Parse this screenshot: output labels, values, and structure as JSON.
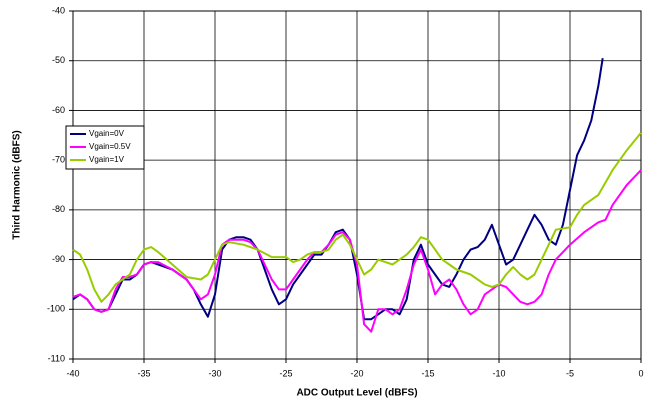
{
  "chart_data": {
    "type": "line",
    "x_label": "ADC Output Level (dBFS)",
    "y_label": "Third Harmonic (dBFS)",
    "xlim": [
      -40,
      0
    ],
    "xticks": [
      -40,
      -35,
      -30,
      -25,
      -20,
      -15,
      -10,
      -5,
      0
    ],
    "ylim": [
      -110,
      -40
    ],
    "yticks": [
      -110,
      -100,
      -90,
      -80,
      -70,
      -60,
      -50,
      -40
    ],
    "grid": true,
    "legend": "upper left",
    "series": [
      {
        "name": "Vgain=0V",
        "color": "#000080",
        "x": [
          -40,
          -39.5,
          -39,
          -38.5,
          -38,
          -37.5,
          -37,
          -36.5,
          -36,
          -35.5,
          -35,
          -34.5,
          -34,
          -33,
          -32,
          -31.5,
          -31,
          -30.5,
          -30,
          -29.5,
          -29,
          -28.5,
          -28,
          -27.5,
          -27,
          -26.5,
          -26,
          -25.5,
          -25,
          -24.5,
          -24,
          -23.5,
          -23,
          -22.5,
          -22,
          -21.5,
          -21,
          -20.5,
          -20,
          -19.5,
          -19,
          -18.5,
          -18,
          -17.5,
          -17,
          -16.5,
          -16,
          -15.5,
          -15,
          -14.5,
          -14,
          -13.5,
          -13,
          -12.5,
          -12,
          -11.5,
          -11,
          -10.5,
          -10,
          -9.5,
          -9,
          -8.5,
          -8,
          -7.5,
          -7,
          -6.5,
          -6,
          -5.5,
          -5,
          -4.5,
          -4,
          -3.5,
          -3,
          -2.7
        ],
        "values": [
          -98,
          -97,
          -98,
          -100,
          -100.5,
          -100,
          -97,
          -94,
          -94,
          -93,
          -91,
          -90.5,
          -91,
          -92,
          -94,
          -96,
          -99,
          -101.5,
          -97,
          -88,
          -86,
          -85.5,
          -85.5,
          -86,
          -88,
          -92,
          -96,
          -99,
          -98,
          -95,
          -93,
          -91,
          -89,
          -89,
          -87,
          -84.5,
          -84,
          -86,
          -93,
          -102,
          -102,
          -101,
          -100,
          -100,
          -101,
          -98,
          -90,
          -87,
          -91,
          -93,
          -95,
          -95.5,
          -93,
          -90,
          -88,
          -87.5,
          -86,
          -83,
          -87,
          -91,
          -90,
          -87,
          -84,
          -81,
          -83,
          -86,
          -87,
          -83,
          -76,
          -69,
          -66,
          -62,
          -55,
          -49.5
        ]
      },
      {
        "name": "Vgain=0.5V",
        "color": "#ff00ff",
        "x": [
          -40,
          -39.5,
          -39,
          -38.5,
          -38,
          -37.5,
          -37,
          -36.5,
          -36,
          -35.5,
          -35,
          -34.5,
          -34,
          -33,
          -32,
          -31.5,
          -31,
          -30.5,
          -30,
          -29.5,
          -29,
          -28.5,
          -28,
          -27.5,
          -27,
          -26.5,
          -26,
          -25.5,
          -25,
          -24.5,
          -24,
          -23.5,
          -23,
          -22.5,
          -22,
          -21.5,
          -21,
          -20.5,
          -20,
          -19.5,
          -19,
          -18.5,
          -18,
          -17.5,
          -17,
          -16.5,
          -16,
          -15.5,
          -15,
          -14.5,
          -14,
          -13.5,
          -13,
          -12.5,
          -12,
          -11.5,
          -11,
          -10.5,
          -10,
          -9.5,
          -9,
          -8.5,
          -8,
          -7.5,
          -7,
          -6.5,
          -6,
          -5,
          -4,
          -3,
          -2.5,
          -2,
          -1,
          0
        ],
        "values": [
          -97.5,
          -97,
          -98,
          -100,
          -100.5,
          -100,
          -96,
          -93.5,
          -93.5,
          -93,
          -91,
          -90.5,
          -90.5,
          -92,
          -94,
          -96,
          -98,
          -97,
          -93,
          -87,
          -86,
          -86,
          -86,
          -86.5,
          -88,
          -91,
          -94,
          -96,
          -96,
          -94,
          -92,
          -90,
          -88.5,
          -88.5,
          -87,
          -85,
          -84.5,
          -86,
          -91,
          -103,
          -104.5,
          -100,
          -100,
          -101,
          -100,
          -96,
          -91,
          -88,
          -92,
          -97,
          -95,
          -94,
          -96,
          -99,
          -101,
          -100,
          -97,
          -96,
          -95,
          -95.5,
          -97,
          -98.5,
          -99,
          -98.5,
          -97,
          -93,
          -90,
          -87,
          -84.5,
          -82.5,
          -82,
          -79,
          -75,
          -72
        ]
      },
      {
        "name": "Vgain=1V",
        "color": "#99cc00",
        "x": [
          -40,
          -39.5,
          -39,
          -38.5,
          -38,
          -37.5,
          -37,
          -36.5,
          -36,
          -35.5,
          -35,
          -34.5,
          -34,
          -33,
          -32,
          -31,
          -30.5,
          -30,
          -29.5,
          -29,
          -28,
          -27,
          -26,
          -25,
          -24.5,
          -24,
          -23.5,
          -23,
          -22.5,
          -22,
          -21.5,
          -21,
          -20.5,
          -20,
          -19.5,
          -19,
          -18.5,
          -18,
          -17.5,
          -17,
          -16.5,
          -16,
          -15.5,
          -15,
          -14.5,
          -14,
          -13.5,
          -13,
          -12.5,
          -12,
          -11.5,
          -11,
          -10.5,
          -10,
          -9.5,
          -9,
          -8.5,
          -8,
          -7.5,
          -7,
          -6.5,
          -6,
          -5,
          -4.5,
          -4,
          -3,
          -2,
          -1,
          0
        ],
        "values": [
          -88,
          -89,
          -92,
          -96,
          -98.5,
          -97,
          -95,
          -94,
          -93,
          -90,
          -88,
          -87.5,
          -88.5,
          -91,
          -93.5,
          -94,
          -93,
          -90,
          -87,
          -86.5,
          -87,
          -88,
          -89.5,
          -89.5,
          -90.5,
          -90,
          -89,
          -88.5,
          -88.5,
          -88,
          -86,
          -85,
          -87,
          -90,
          -93,
          -92,
          -90,
          -90.5,
          -91,
          -90,
          -89,
          -87.5,
          -85.5,
          -86,
          -88,
          -90,
          -91,
          -92,
          -92.5,
          -93,
          -94,
          -95,
          -95.5,
          -95,
          -93,
          -91.5,
          -93,
          -94,
          -93,
          -90,
          -87,
          -84,
          -83.5,
          -81,
          -79,
          -77,
          -72,
          -68,
          -64.5
        ]
      }
    ]
  }
}
